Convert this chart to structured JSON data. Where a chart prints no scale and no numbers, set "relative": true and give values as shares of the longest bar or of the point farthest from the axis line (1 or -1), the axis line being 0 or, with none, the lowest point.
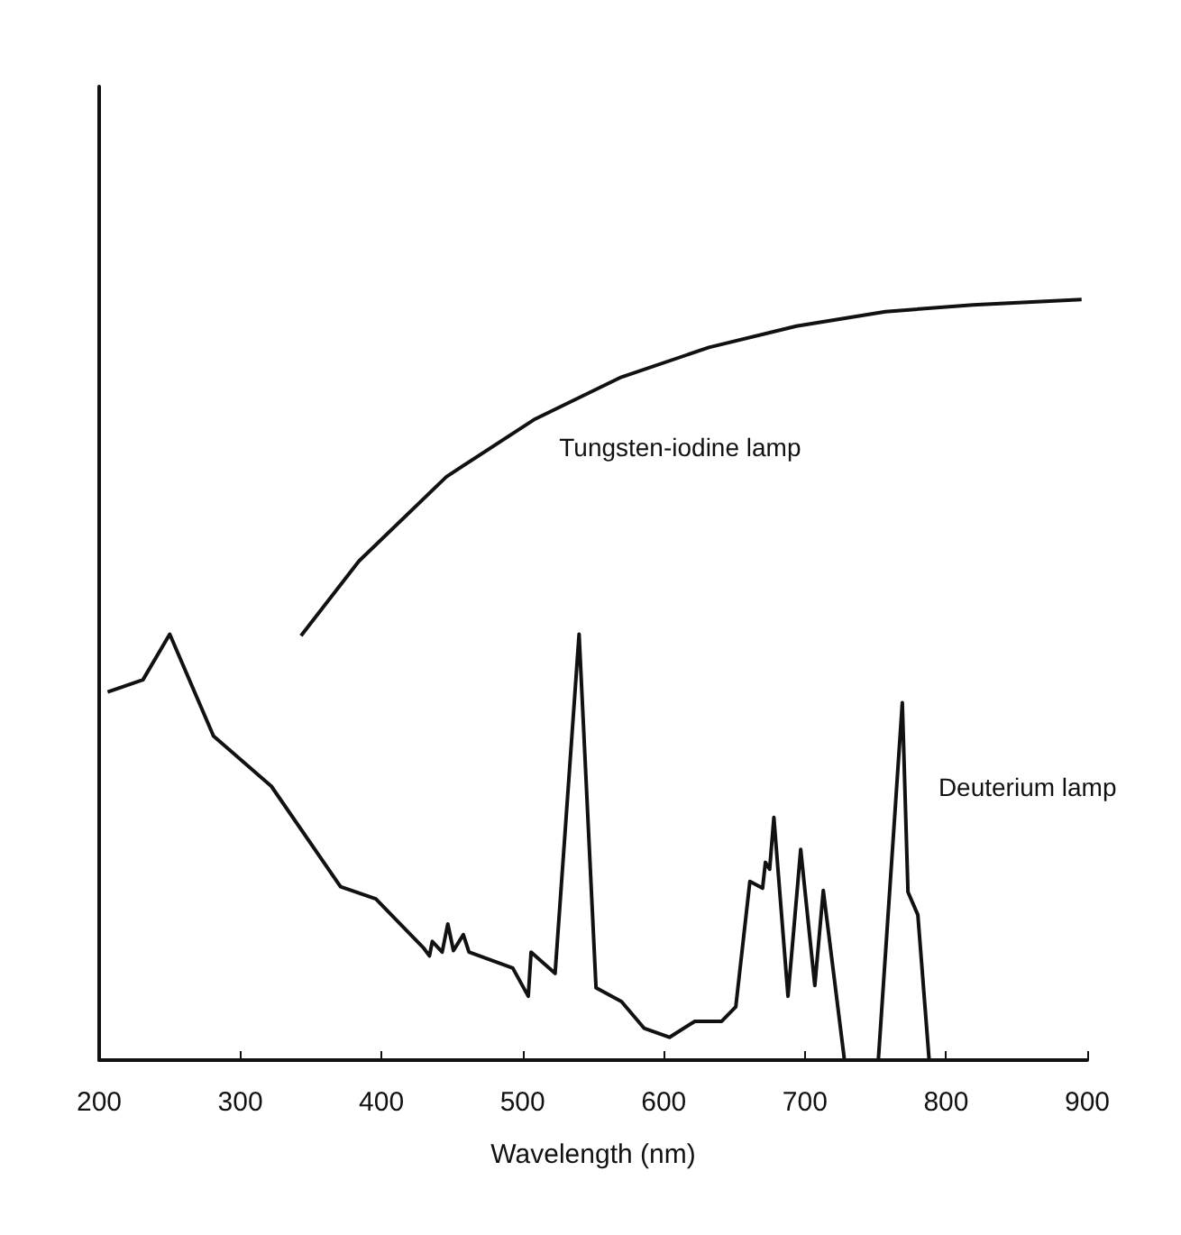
{
  "chart_data": {
    "type": "line",
    "xlabel": "Wavelength (nm)",
    "relative": true,
    "x": [
      206,
      231,
      250,
      281,
      322,
      371,
      396,
      430,
      434,
      436,
      443,
      447,
      451,
      458,
      462,
      493,
      504,
      506,
      523,
      540,
      552,
      570,
      586,
      604,
      622,
      641,
      651,
      661,
      670,
      672,
      675,
      678,
      688,
      697,
      707,
      713,
      728,
      752,
      769,
      773,
      780,
      788
    ],
    "xlim": [
      200,
      900
    ],
    "xticks": [
      200,
      300,
      400,
      500,
      600,
      700,
      800,
      900
    ],
    "grid": false,
    "legend": false,
    "marker": "none",
    "line_style": "solid",
    "series": [
      {
        "name": "Tungsten-iodine lamp",
        "color": "#111111",
        "x": [
          343,
          384,
          446,
          508,
          570,
          632,
          694,
          757,
          819,
          896
        ],
        "values": [
          0.558,
          0.656,
          0.767,
          0.842,
          0.898,
          0.937,
          0.965,
          0.984,
          0.993,
          1
        ]
      },
      {
        "name": "Deuterium lamp",
        "color": "#111111",
        "values": [
          0.484,
          0.5,
          0.56,
          0.426,
          0.36,
          0.228,
          0.212,
          0.147,
          0.137,
          0.156,
          0.142,
          0.179,
          0.144,
          0.165,
          0.142,
          0.121,
          0.084,
          0.142,
          0.114,
          0.56,
          0.095,
          0.077,
          0.042,
          0.03,
          0.051,
          0.051,
          0.07,
          0.235,
          0.226,
          0.26,
          0.251,
          0.319,
          0.084,
          0.277,
          0.098,
          0.223,
          0,
          0,
          0.47,
          0.221,
          0.191,
          0
        ]
      }
    ]
  }
}
